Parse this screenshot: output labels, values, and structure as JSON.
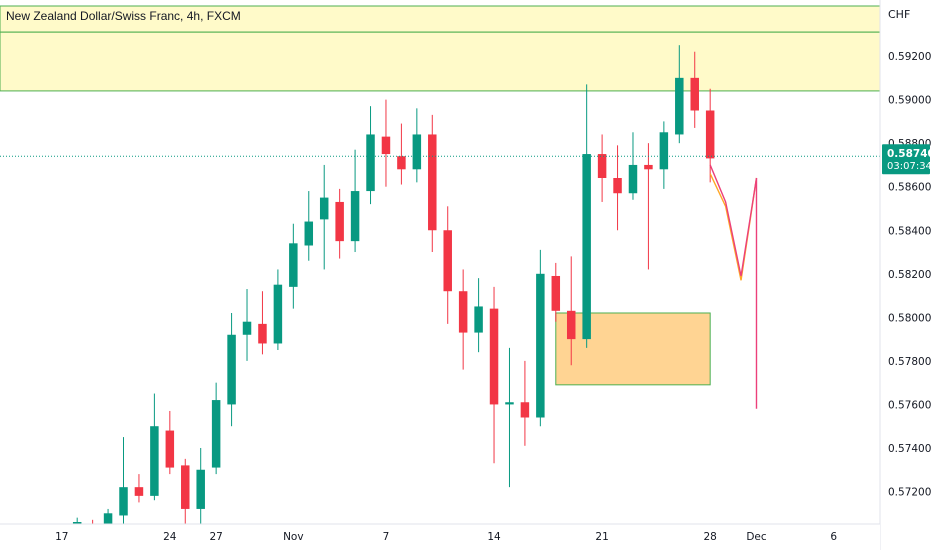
{
  "chart_data": {
    "type": "candlestick",
    "title": "New Zealand Dollar/Swiss Franc, 4h, FXCM",
    "currency": "CHF",
    "price_axis": {
      "ylim": [
        0.5706,
        0.5943
      ],
      "ticks": [
        {
          "value": 0.592,
          "label": "0.59200"
        },
        {
          "value": 0.59,
          "label": "0.59000"
        },
        {
          "value": 0.588,
          "label": "0.58800"
        },
        {
          "value": 0.586,
          "label": "0.58600"
        },
        {
          "value": 0.584,
          "label": "0.58400"
        },
        {
          "value": 0.582,
          "label": "0.58200"
        },
        {
          "value": 0.58,
          "label": "0.58000"
        },
        {
          "value": 0.578,
          "label": "0.57800"
        },
        {
          "value": 0.576,
          "label": "0.57600"
        },
        {
          "value": 0.574,
          "label": "0.57400"
        },
        {
          "value": 0.572,
          "label": "0.57200"
        }
      ]
    },
    "time_axis": {
      "range": [
        "2022-10-13",
        "2022-12-09"
      ],
      "ticks": [
        {
          "date": "2022-10-17",
          "label": "17"
        },
        {
          "date": "2022-10-24",
          "label": "24"
        },
        {
          "date": "2022-10-27",
          "label": "27"
        },
        {
          "date": "2022-11-01",
          "label": "Nov"
        },
        {
          "date": "2022-11-07",
          "label": "7"
        },
        {
          "date": "2022-11-14",
          "label": "14"
        },
        {
          "date": "2022-11-21",
          "label": "21"
        },
        {
          "date": "2022-11-28",
          "label": "28"
        },
        {
          "date": "2022-12-01",
          "label": "Dec"
        },
        {
          "date": "2022-12-06",
          "label": "6"
        }
      ]
    },
    "current_price": {
      "value": 0.5874,
      "label": "0.58740",
      "countdown": "03:07:34",
      "color": "#089981"
    },
    "colors": {
      "up": "#089981",
      "down": "#f23645",
      "resistance_fill": "#fff59d",
      "resistance_border": "#4caf50",
      "demand_fill": "#ffcc80",
      "demand_border": "#4caf50"
    },
    "zones": [
      {
        "name": "resistance-upper",
        "date_from": "2022-10-13",
        "date_to": "2022-12-09",
        "price_low": 0.5931,
        "price_high": 0.5943
      },
      {
        "name": "resistance-lower",
        "date_from": "2022-10-13",
        "date_to": "2022-12-09",
        "price_low": 0.5904,
        "price_high": 0.5931
      },
      {
        "name": "demand-zone",
        "date_from": "2022-11-18",
        "date_to": "2022-11-28",
        "price_low": 0.5769,
        "price_high": 0.5802
      }
    ],
    "projection_paths": [
      {
        "name": "orange-path",
        "color": "#ffa726",
        "points": [
          [
            "2022-11-28",
            0.5866
          ],
          [
            "2022-11-29",
            0.5851
          ],
          [
            "2022-11-30",
            0.5817
          ],
          [
            "2022-12-01",
            0.5864
          ]
        ]
      },
      {
        "name": "pink-path",
        "color": "#ec407a",
        "points": [
          [
            "2022-11-28",
            0.587
          ],
          [
            "2022-11-29",
            0.5853
          ],
          [
            "2022-11-30",
            0.5819
          ],
          [
            "2022-12-01",
            0.5864
          ],
          [
            "2022-12-01",
            0.5758
          ]
        ]
      }
    ],
    "candles": [
      [
        "2022-10-18",
        0.5703,
        0.5708,
        0.57,
        0.5706
      ],
      [
        "2022-10-19",
        0.5705,
        0.5707,
        0.57,
        0.5702
      ],
      [
        "2022-10-20",
        0.57,
        0.5712,
        0.5698,
        0.571
      ],
      [
        "2022-10-21",
        0.5709,
        0.5745,
        0.5705,
        0.5722
      ],
      [
        "2022-10-22",
        0.5722,
        0.5728,
        0.5715,
        0.5718
      ],
      [
        "2022-10-23",
        0.5718,
        0.5765,
        0.5716,
        0.575
      ],
      [
        "2022-10-24",
        0.5748,
        0.5757,
        0.5728,
        0.5731
      ],
      [
        "2022-10-25",
        0.5732,
        0.5735,
        0.5705,
        0.5712
      ],
      [
        "2022-10-26",
        0.5712,
        0.574,
        0.5705,
        0.573
      ],
      [
        "2022-10-27",
        0.5731,
        0.577,
        0.5728,
        0.5762
      ],
      [
        "2022-10-28",
        0.576,
        0.5802,
        0.575,
        0.5792
      ],
      [
        "2022-10-29",
        0.5792,
        0.5813,
        0.578,
        0.5798
      ],
      [
        "2022-10-30",
        0.5797,
        0.5812,
        0.5783,
        0.5788
      ],
      [
        "2022-10-31",
        0.5788,
        0.5822,
        0.5785,
        0.5815
      ],
      [
        "2022-11-01",
        0.5814,
        0.5843,
        0.5804,
        0.5834
      ],
      [
        "2022-11-02",
        0.5833,
        0.5858,
        0.5826,
        0.5844
      ],
      [
        "2022-11-03",
        0.5845,
        0.587,
        0.5822,
        0.5855
      ],
      [
        "2022-11-04",
        0.5853,
        0.5859,
        0.5827,
        0.5835
      ],
      [
        "2022-11-05",
        0.5835,
        0.5877,
        0.583,
        0.5858
      ],
      [
        "2022-11-06",
        0.5858,
        0.5897,
        0.5852,
        0.5884
      ],
      [
        "2022-11-07",
        0.5883,
        0.59,
        0.586,
        0.5875
      ],
      [
        "2022-11-08",
        0.5874,
        0.5889,
        0.5861,
        0.5868
      ],
      [
        "2022-11-09",
        0.5868,
        0.5896,
        0.5862,
        0.5884
      ],
      [
        "2022-11-10",
        0.5884,
        0.5893,
        0.583,
        0.584
      ],
      [
        "2022-11-11",
        0.584,
        0.5851,
        0.5797,
        0.5812
      ],
      [
        "2022-11-12",
        0.5812,
        0.5822,
        0.5776,
        0.5793
      ],
      [
        "2022-11-13",
        0.5793,
        0.5818,
        0.5784,
        0.5805
      ],
      [
        "2022-11-14",
        0.5804,
        0.5814,
        0.5733,
        0.576
      ],
      [
        "2022-11-15",
        0.576,
        0.5786,
        0.5722,
        0.5761
      ],
      [
        "2022-11-16",
        0.5761,
        0.578,
        0.5741,
        0.5754
      ],
      [
        "2022-11-17",
        0.5754,
        0.5831,
        0.575,
        0.582
      ],
      [
        "2022-11-18",
        0.5819,
        0.5825,
        0.5798,
        0.5803
      ],
      [
        "2022-11-19",
        0.5803,
        0.5828,
        0.5778,
        0.579
      ],
      [
        "2022-11-20",
        0.579,
        0.5907,
        0.5786,
        0.5875
      ],
      [
        "2022-11-21",
        0.5875,
        0.5884,
        0.5853,
        0.5864
      ],
      [
        "2022-11-22",
        0.5864,
        0.5879,
        0.584,
        0.5857
      ],
      [
        "2022-11-23",
        0.5857,
        0.5885,
        0.5854,
        0.587
      ],
      [
        "2022-11-24",
        0.587,
        0.588,
        0.5822,
        0.5868
      ],
      [
        "2022-11-25",
        0.5868,
        0.589,
        0.5859,
        0.5885
      ],
      [
        "2022-11-26",
        0.5884,
        0.5925,
        0.588,
        0.591
      ],
      [
        "2022-11-27",
        0.591,
        0.5922,
        0.5887,
        0.5895
      ],
      [
        "2022-11-28",
        0.5895,
        0.5905,
        0.5862,
        0.5873
      ]
    ]
  }
}
